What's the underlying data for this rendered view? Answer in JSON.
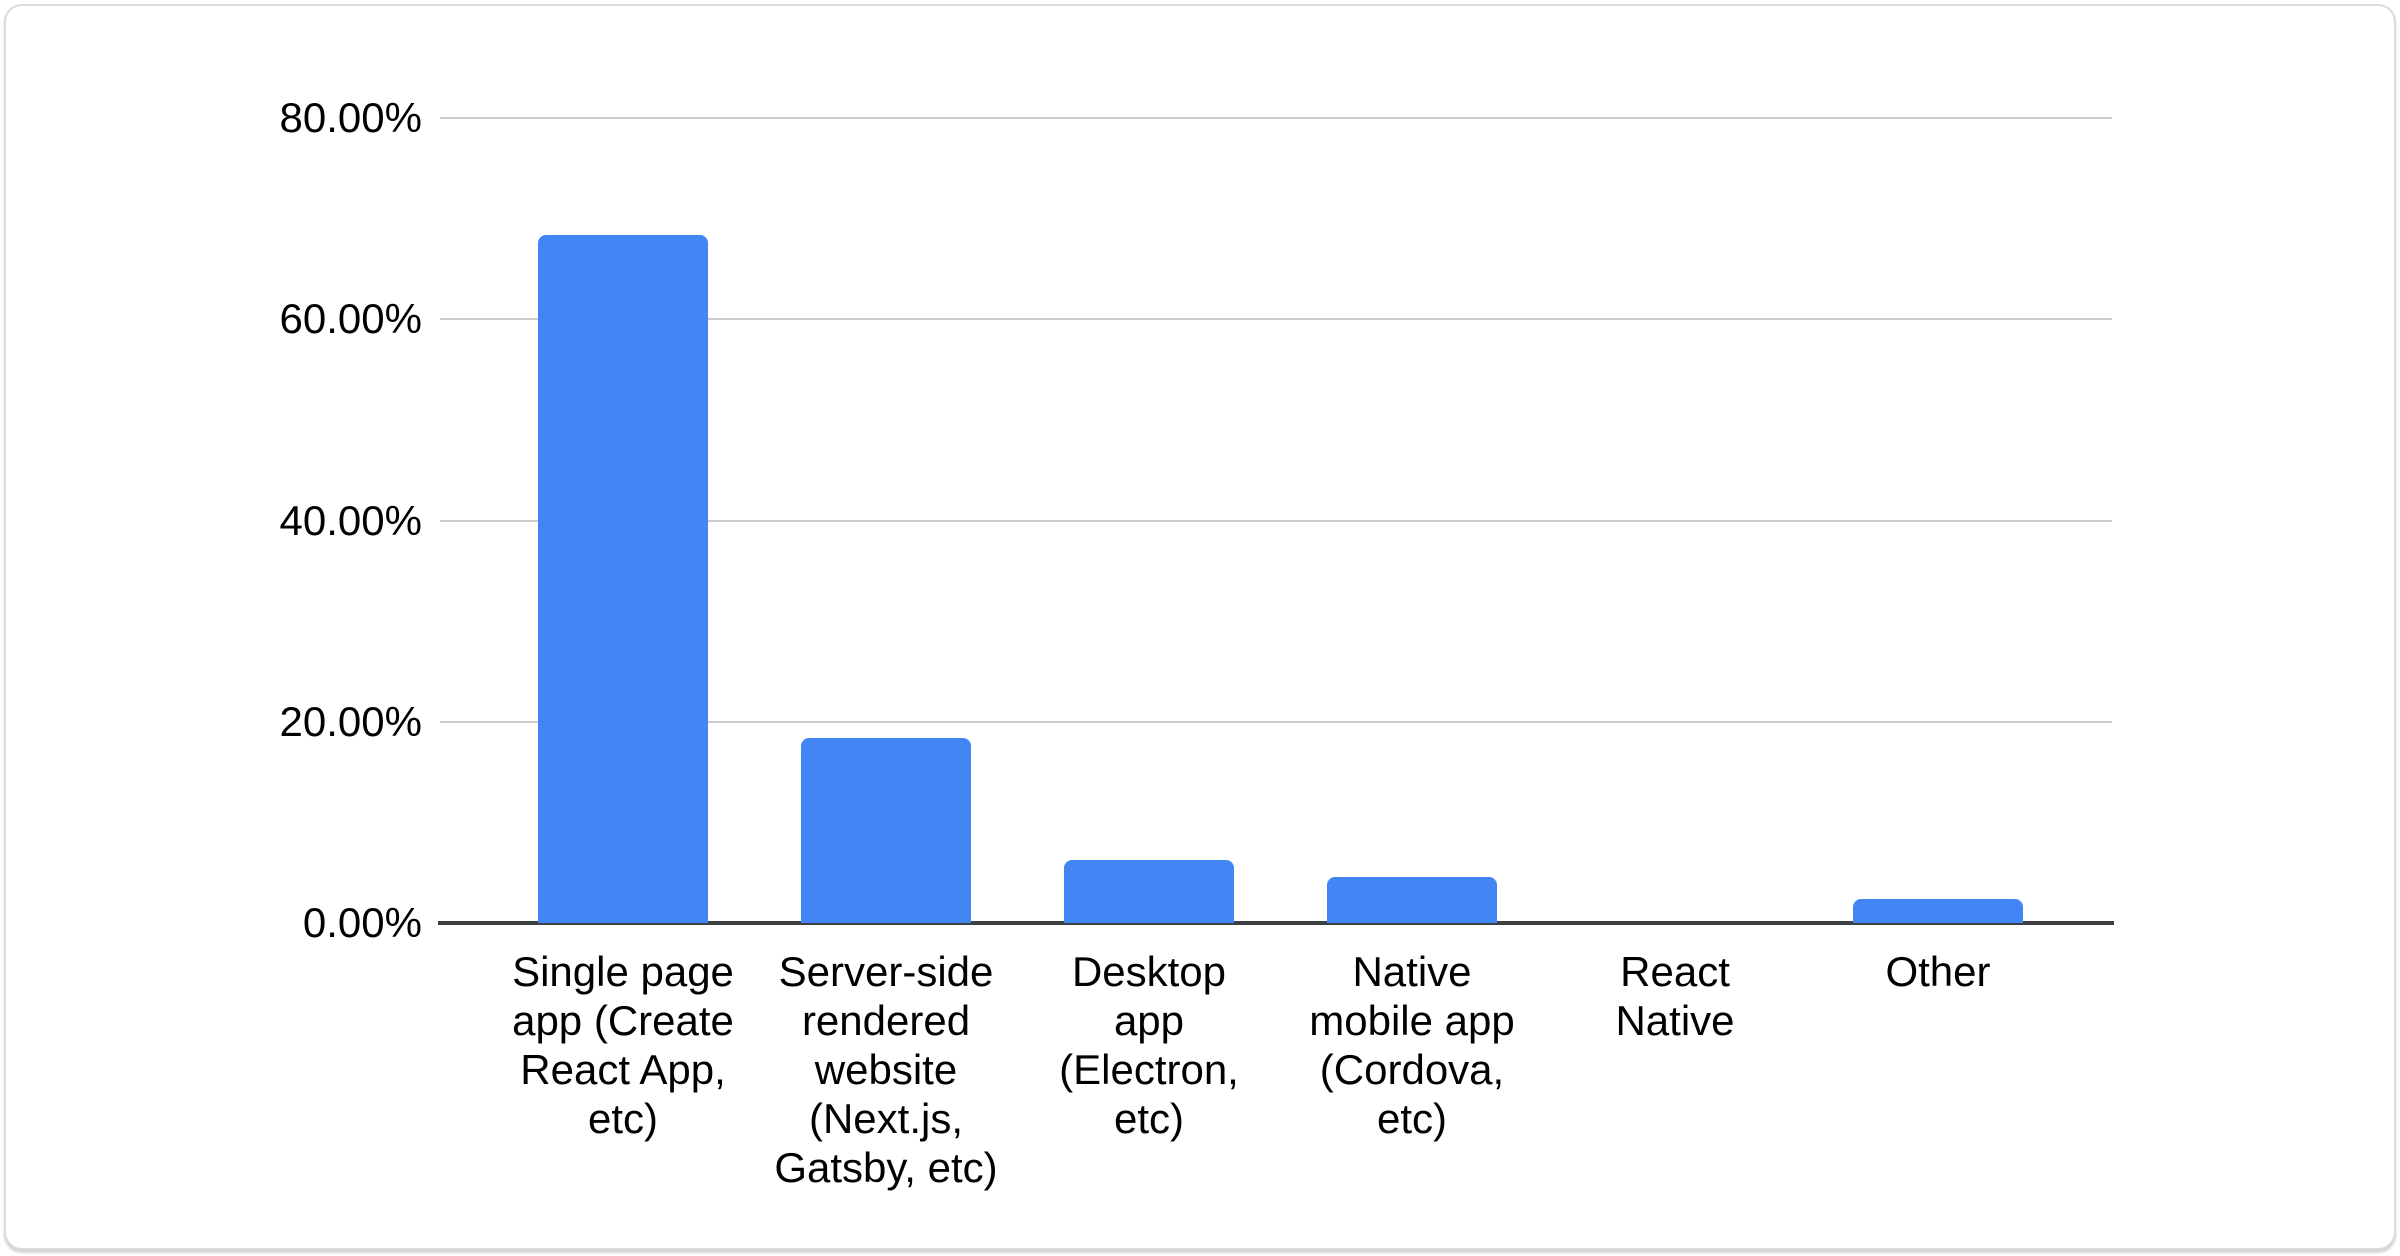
{
  "chart_data": {
    "type": "bar",
    "title": "",
    "xlabel": "",
    "ylabel": "",
    "categories": [
      "Single page app (Create React App, etc)",
      "Server-side rendered website (Next.js, Gatsby, etc)",
      "Desktop app (Electron, etc)",
      "Native mobile app (Cordova, etc)",
      "React Native",
      "Other"
    ],
    "categories_wrapped": [
      "Single page\napp (Create\nReact App,\netc)",
      "Server-side\nrendered\nwebsite\n(Next.js,\nGatsby, etc)",
      "Desktop\napp\n(Electron,\netc)",
      "Native\nmobile app\n(Cordova,\netc)",
      "React\nNative",
      "Other"
    ],
    "values": [
      68.4,
      18.4,
      6.3,
      4.6,
      0,
      2.4
    ],
    "unit": "%",
    "ylim": [
      0,
      80
    ],
    "yticks": [
      {
        "value": 0,
        "label": "0.00%"
      },
      {
        "value": 20,
        "label": "20.00%"
      },
      {
        "value": 40,
        "label": "40.00%"
      },
      {
        "value": 60,
        "label": "60.00%"
      },
      {
        "value": 80,
        "label": "80.00%"
      }
    ],
    "grid": true,
    "legend": "none",
    "colors": {
      "bar": "#4285f4",
      "gridline": "#cccccc",
      "baseline": "#3c4043",
      "label_text": "#000000",
      "card_border": "#d9dadd",
      "card_background": "#ffffff"
    }
  }
}
